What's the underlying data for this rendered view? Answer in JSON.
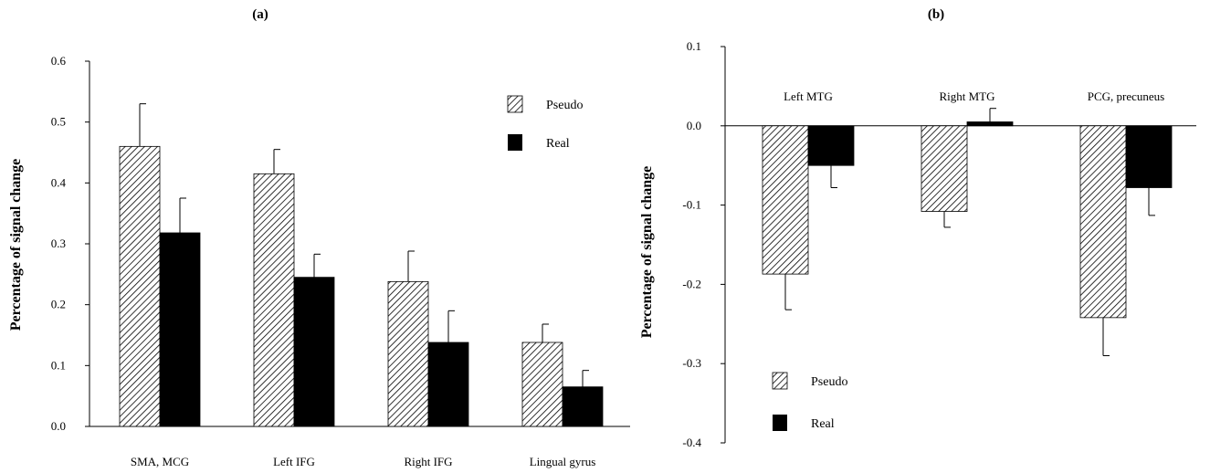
{
  "chart_data": [
    {
      "panel": "(a)",
      "type": "bar",
      "title": "(a)",
      "xlabel": "",
      "ylabel": "Percentage of signal change",
      "ylim": [
        0,
        0.6
      ],
      "yticks": [
        "0.0",
        "0.1",
        "0.2",
        "0.3",
        "0.4",
        "0.5",
        "0.6"
      ],
      "grid": false,
      "legend_position": "top-right",
      "categories": [
        "SMA, MCG",
        "Left IFG",
        "Right IFG",
        "Lingual gyrus"
      ],
      "series": [
        {
          "name": "Pseudo",
          "pattern": "hatched",
          "values": [
            0.46,
            0.415,
            0.238,
            0.138
          ],
          "errors": [
            0.07,
            0.04,
            0.05,
            0.03
          ]
        },
        {
          "name": "Real",
          "pattern": "solid",
          "color": "#000000",
          "values": [
            0.318,
            0.245,
            0.138,
            0.065
          ],
          "errors": [
            0.057,
            0.038,
            0.052,
            0.027
          ]
        }
      ]
    },
    {
      "panel": "(b)",
      "type": "bar",
      "title": "(b)",
      "xlabel": "",
      "ylabel": "Percentage of signal change",
      "ylim": [
        -0.4,
        0.1
      ],
      "yticks": [
        "-0.4",
        "-0.3",
        "-0.2",
        "-0.1",
        "0.0",
        "0.1"
      ],
      "grid": false,
      "legend_position": "bottom-left",
      "categories": [
        "Left MTG",
        "Right MTG",
        "PCG, precuneus"
      ],
      "series": [
        {
          "name": "Pseudo",
          "pattern": "hatched",
          "values": [
            -0.187,
            -0.108,
            -0.242
          ],
          "errors": [
            0.045,
            0.02,
            0.048
          ]
        },
        {
          "name": "Real",
          "pattern": "solid",
          "color": "#000000",
          "values": [
            -0.05,
            0.005,
            -0.078
          ],
          "errors": [
            0.028,
            0.017,
            0.035
          ]
        }
      ]
    }
  ]
}
